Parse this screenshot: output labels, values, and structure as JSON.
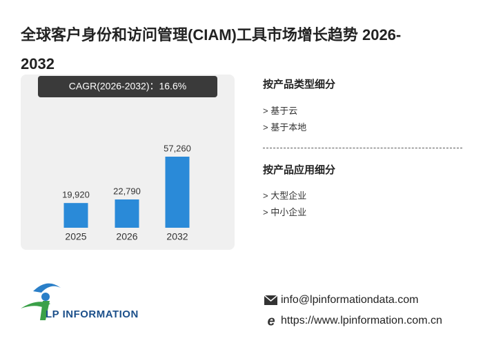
{
  "chart_data": {
    "type": "bar",
    "title": "全球客户身份和访问管理(CIAM)工具市场增长趋势 2026-2032",
    "cagr": "CAGR(2026-2032)：16.6%",
    "categories": [
      "2025",
      "2026",
      "2032"
    ],
    "values": [
      19920,
      22790,
      57260
    ],
    "value_labels": [
      "19,920",
      "22,790",
      "57,260"
    ],
    "color": "#2a8ad8"
  },
  "segments": [
    {
      "heading": "按产品类型细分",
      "items": [
        "> 基于云",
        "> 基于本地"
      ]
    },
    {
      "heading": "按产品应用细分",
      "items": [
        "> 大型企业",
        "> 中小企业"
      ]
    }
  ],
  "logo": "LP INFORMATION",
  "contact": {
    "email": "info@lpinformationdata.com",
    "website": "https://www.lpinformation.com.cn"
  }
}
